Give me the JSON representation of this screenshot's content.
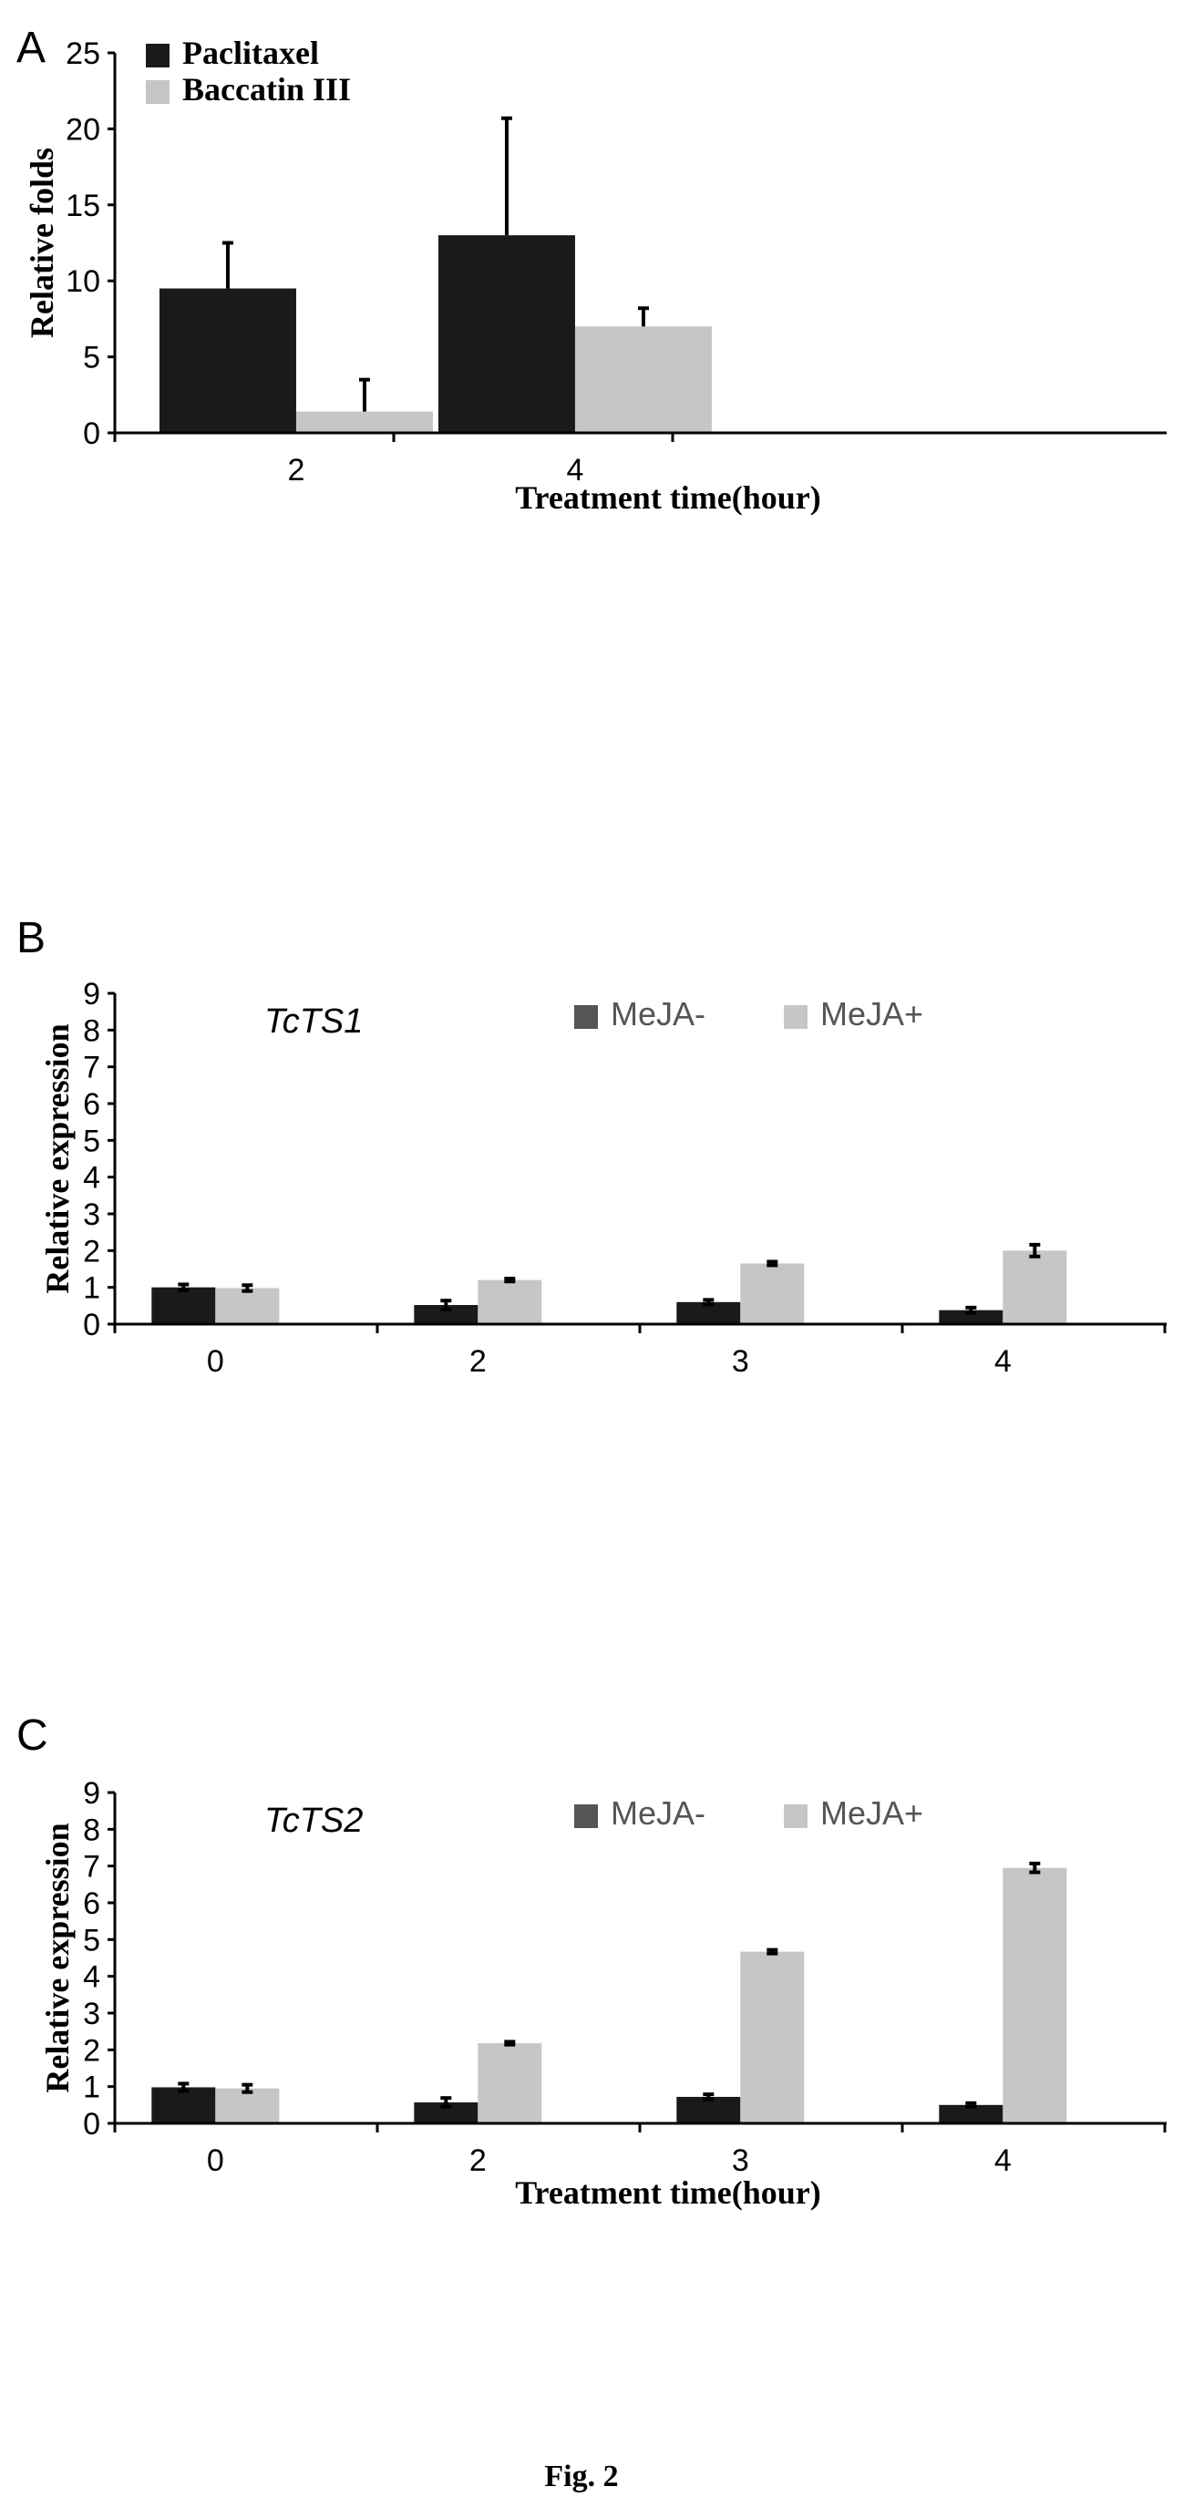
{
  "figure_caption": "Fig. 2",
  "colors": {
    "dark": "#1a1a1a",
    "light": "#c6c6c6",
    "mid": "#555555",
    "axis": "#000000"
  },
  "chart_data": [
    {
      "panel": "A",
      "type": "bar",
      "title": "",
      "xlabel": "Treatment time(hour)",
      "ylabel": "Relative folds",
      "categories": [
        "2",
        "4"
      ],
      "ylim": [
        0,
        25
      ],
      "yticks": [
        "0",
        "5",
        "10",
        "15",
        "20",
        "25"
      ],
      "legend_position": "top-left",
      "series": [
        {
          "name": "Paclitaxel",
          "values": [
            9.5,
            13.0
          ],
          "errors": [
            3.0,
            7.7
          ]
        },
        {
          "name": "Baccatin III",
          "values": [
            1.4,
            7.0
          ],
          "errors": [
            2.1,
            1.2
          ]
        }
      ]
    },
    {
      "panel": "B",
      "type": "bar",
      "title": "TcTS1",
      "xlabel": "",
      "ylabel": "Relative expression",
      "categories": [
        "0",
        "2",
        "3",
        "4"
      ],
      "ylim": [
        0,
        9
      ],
      "yticks": [
        "0",
        "1",
        "2",
        "3",
        "4",
        "5",
        "6",
        "7",
        "8",
        "9"
      ],
      "legend_position": "top-right",
      "series": [
        {
          "name": "MeJA-",
          "values": [
            1.0,
            0.52,
            0.6,
            0.38
          ],
          "errors": [
            0.08,
            0.12,
            0.06,
            0.07
          ]
        },
        {
          "name": "MeJA+",
          "values": [
            0.98,
            1.2,
            1.65,
            2.0
          ],
          "errors": [
            0.08,
            0.04,
            0.05,
            0.16
          ]
        }
      ]
    },
    {
      "panel": "C",
      "type": "bar",
      "title": "TcTS2",
      "xlabel": "Treatment time(hour)",
      "ylabel": "Relative expression",
      "categories": [
        "0",
        "2",
        "3",
        "4"
      ],
      "ylim": [
        0,
        9
      ],
      "yticks": [
        "0",
        "1",
        "2",
        "3",
        "4",
        "5",
        "6",
        "7",
        "8",
        "9"
      ],
      "legend_position": "top-right",
      "series": [
        {
          "name": "MeJA-",
          "values": [
            0.98,
            0.57,
            0.72,
            0.5
          ],
          "errors": [
            0.1,
            0.12,
            0.07,
            0.05
          ]
        },
        {
          "name": "MeJA+",
          "values": [
            0.95,
            2.18,
            4.67,
            6.95
          ],
          "errors": [
            0.1,
            0.04,
            0.05,
            0.12
          ]
        }
      ]
    }
  ]
}
